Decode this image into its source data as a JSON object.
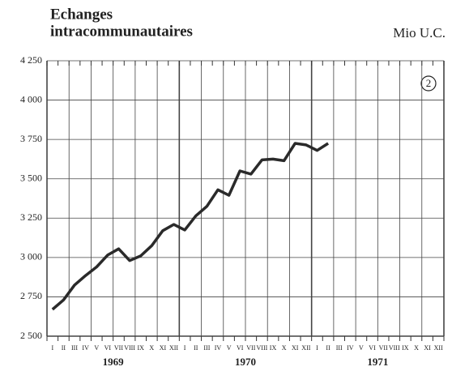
{
  "chart_data": {
    "type": "line",
    "title_lines": [
      "Echanges",
      "intracommunautaires"
    ],
    "unit": "Mio U.C.",
    "annotation": "2",
    "categories": [
      "I",
      "II",
      "III",
      "IV",
      "V",
      "VI",
      "VII",
      "VIII",
      "IX",
      "X",
      "XI",
      "XII",
      "I",
      "II",
      "III",
      "IV",
      "V",
      "VI",
      "VII",
      "VIII",
      "IX",
      "X",
      "XI",
      "XII",
      "I",
      "II",
      "III",
      "IV",
      "V",
      "VI",
      "VII",
      "VIII",
      "IX",
      "X",
      "XI",
      "XII"
    ],
    "years": [
      "1969",
      "1970",
      "1971"
    ],
    "series": [
      {
        "name": "Echanges intracommunautaires",
        "color": "#2a2a2a",
        "values": [
          2670,
          2730,
          2825,
          2885,
          2940,
          3015,
          3055,
          2980,
          3010,
          3075,
          3170,
          3210,
          3175,
          3265,
          3325,
          3430,
          3395,
          3550,
          3530,
          3620,
          3625,
          3615,
          3725,
          3715,
          3680,
          3725,
          null,
          null,
          null,
          null,
          null,
          null,
          null,
          null,
          null,
          null
        ]
      }
    ],
    "ylim": [
      2500,
      4250
    ],
    "yticks": [
      {
        "value": 2500,
        "label": "2 500"
      },
      {
        "value": 2750,
        "label": "2 750"
      },
      {
        "value": 3000,
        "label": "3 000"
      },
      {
        "value": 3250,
        "label": "3 250"
      },
      {
        "value": 3500,
        "label": "3 500"
      },
      {
        "value": 3750,
        "label": "3 750"
      },
      {
        "value": 4000,
        "label": "4 000"
      },
      {
        "value": 4250,
        "label": "4 250"
      }
    ],
    "grid": true
  }
}
